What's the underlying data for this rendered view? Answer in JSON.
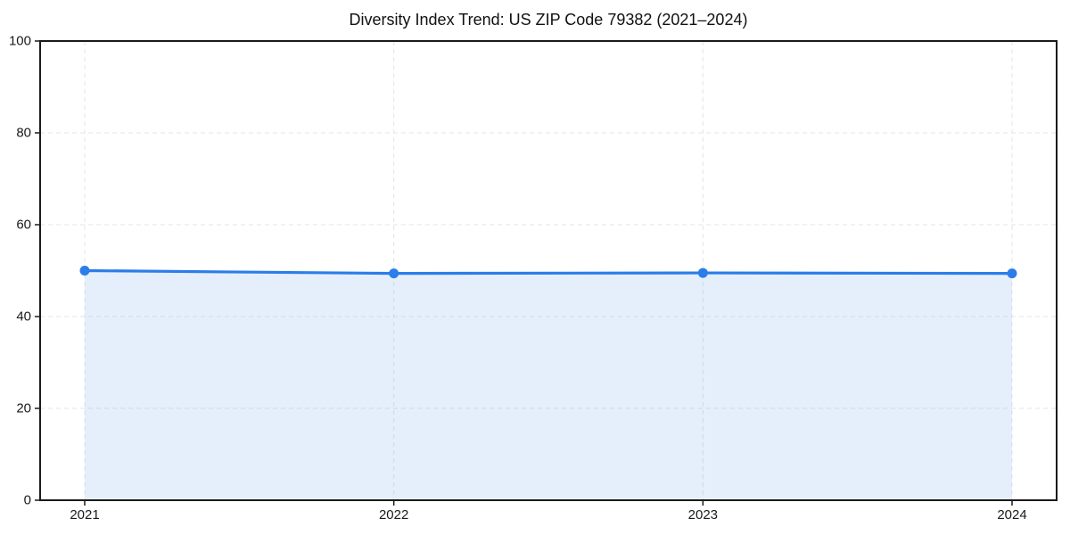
{
  "chart_data": {
    "type": "area",
    "title": "Diversity Index Trend: US ZIP Code 79382 (2021–2024)",
    "categories": [
      "2021",
      "2022",
      "2023",
      "2024"
    ],
    "series": [
      {
        "name": "Diversity Index",
        "values": [
          50.0,
          49.4,
          49.5,
          49.4
        ]
      }
    ],
    "xlabel": "",
    "ylabel": "",
    "ylim": [
      0,
      100
    ],
    "yticks": [
      0,
      20,
      40,
      60,
      80,
      100
    ],
    "grid": "dashed-both-axes",
    "legend_position": "none",
    "colors": {
      "line": "#2b7de9",
      "marker": "#2b7de9",
      "area_fill": "rgba(43,125,233,0.12)",
      "grid": "#e5e5e5",
      "spine": "#1a1a1a",
      "tick": "#1a1a1a",
      "tick_label": "#1a1a1a",
      "title": "#111111",
      "background": "#ffffff"
    }
  }
}
